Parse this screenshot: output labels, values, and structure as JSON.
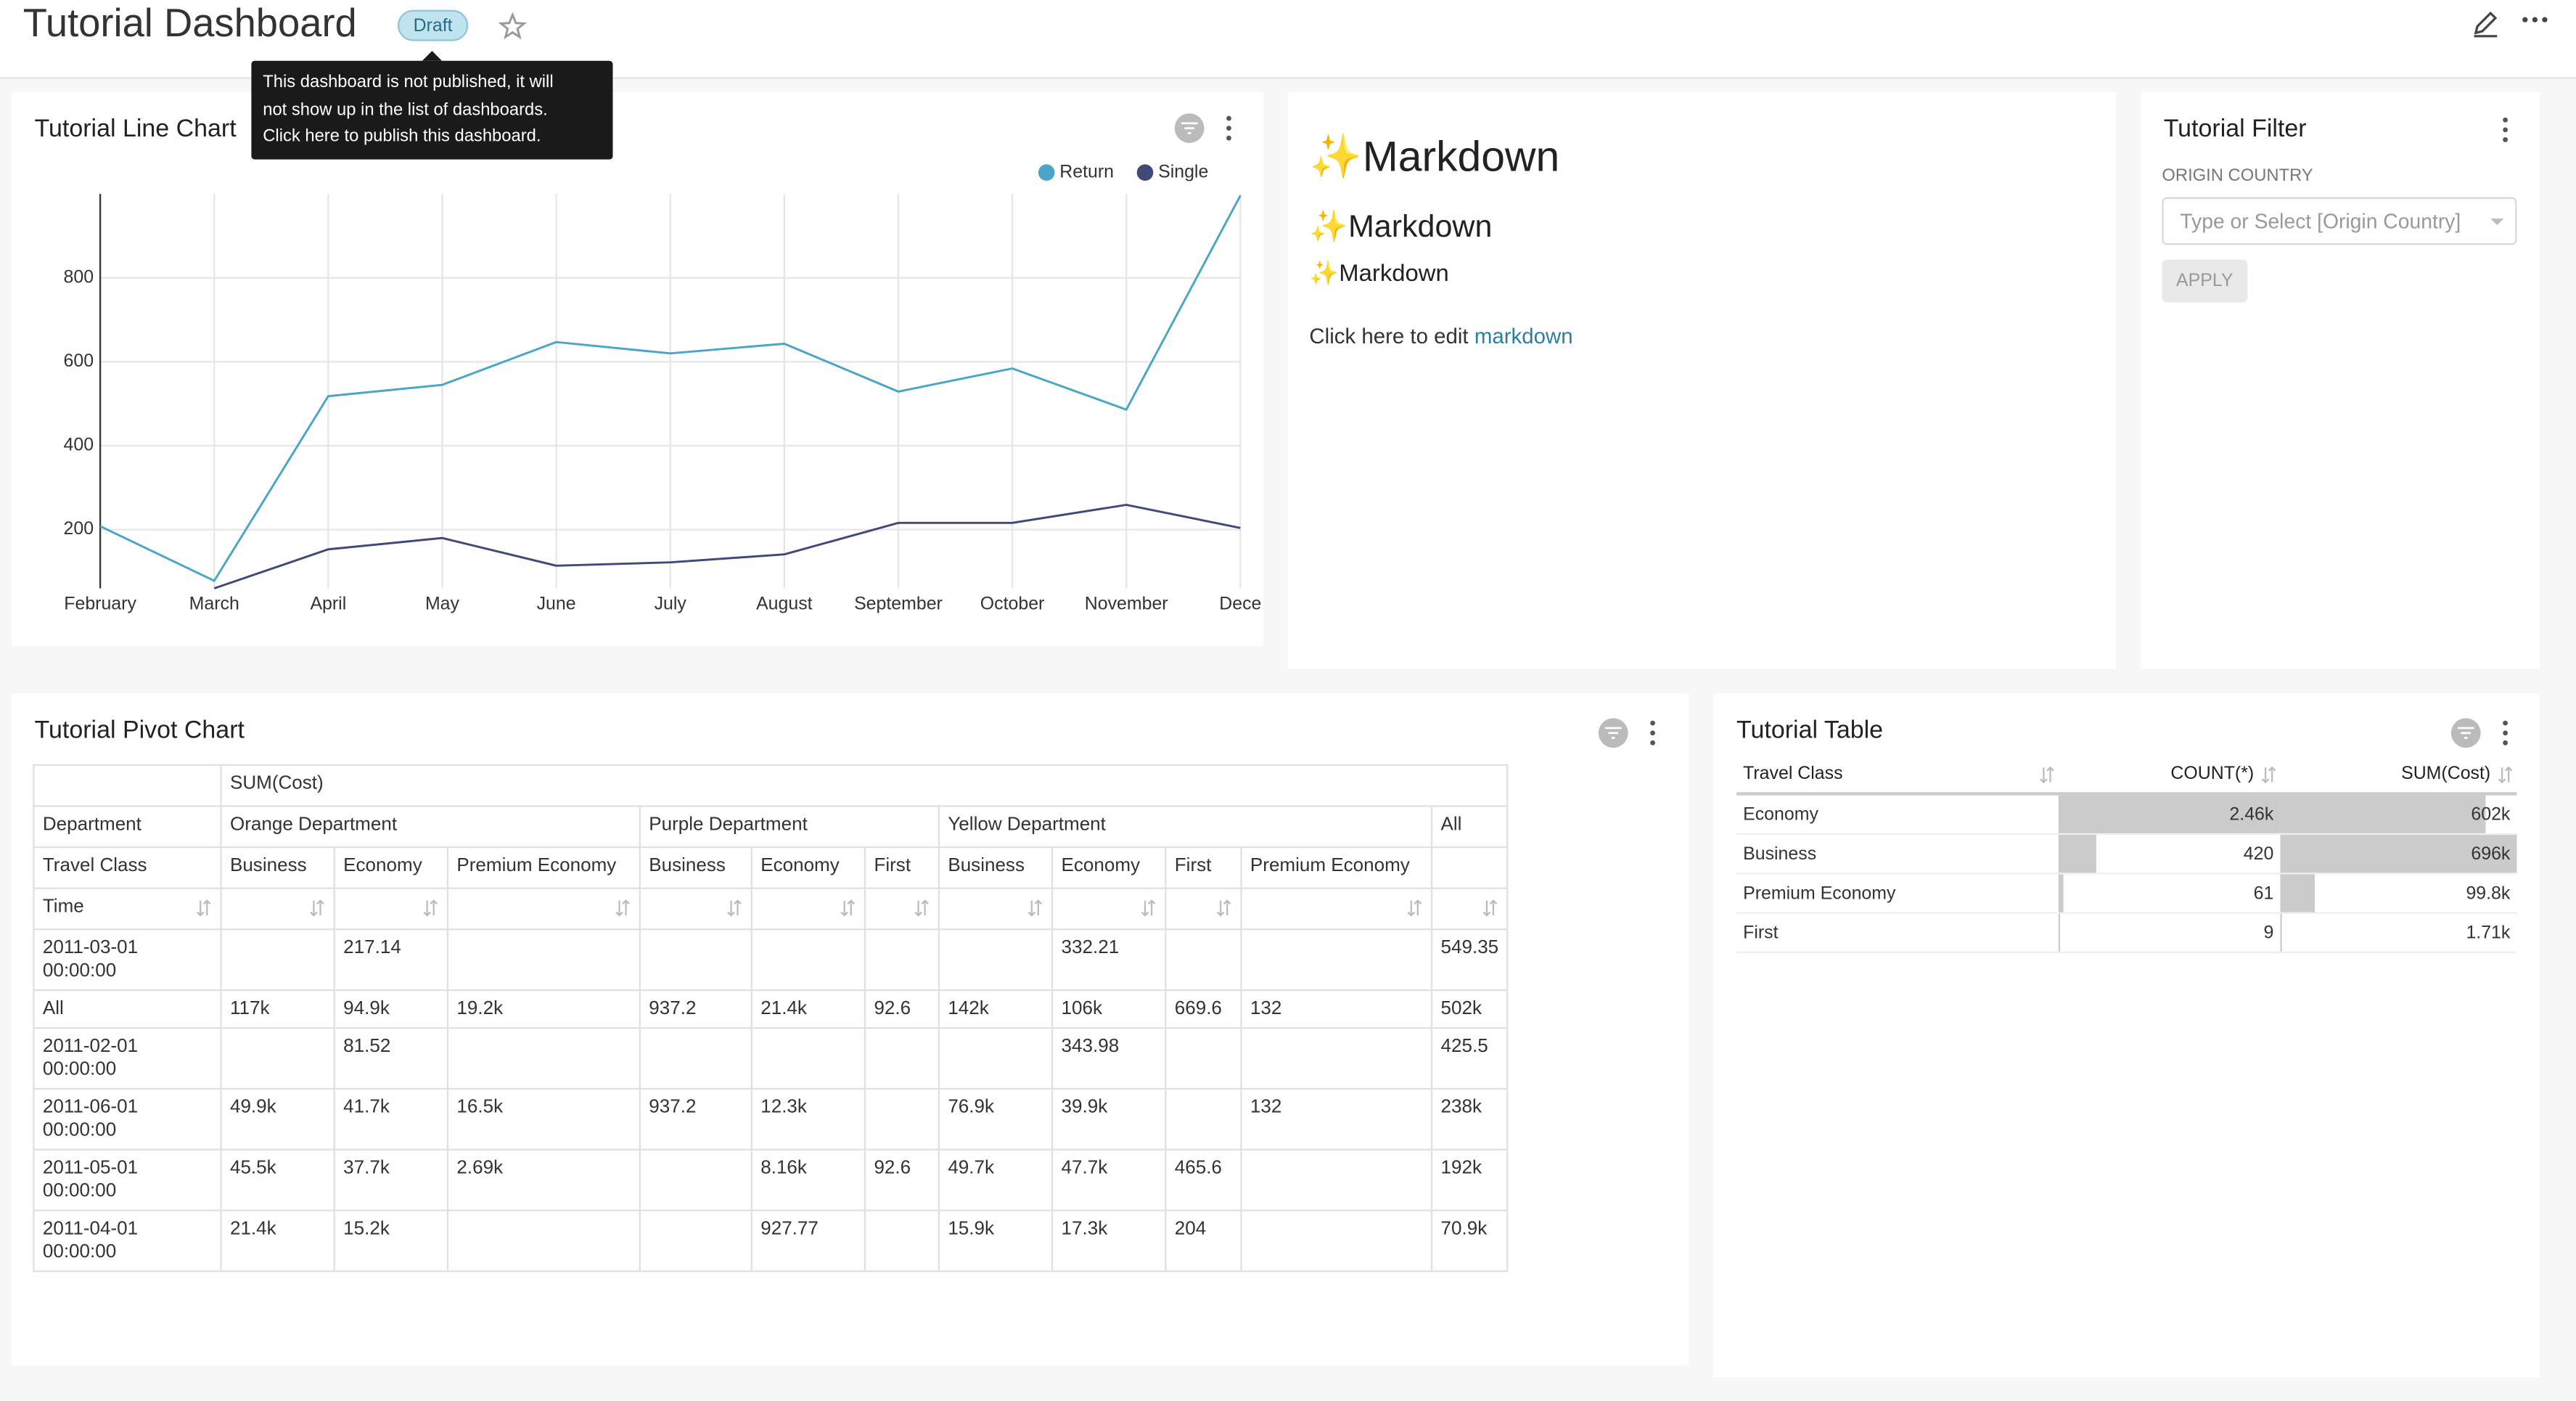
{
  "header": {
    "title": "Tutorial Dashboard",
    "badge": "Draft"
  },
  "tooltip": {
    "lines": [
      "This dashboard is not published, it will",
      "not show up in the list of dashboards.",
      "Click here to publish this dashboard."
    ]
  },
  "chart_data": {
    "type": "line",
    "title": "Tutorial Line Chart",
    "categories": [
      "February",
      "March",
      "April",
      "May",
      "June",
      "July",
      "August",
      "September",
      "October",
      "November",
      "Dece"
    ],
    "series": [
      {
        "name": "Return",
        "color": "#4aa6c9",
        "values": [
          208,
          78,
          518,
          545,
          647,
          620,
          643,
          529,
          584,
          486,
          996
        ]
      },
      {
        "name": "Single",
        "color": "#3f4a7a",
        "values": [
          null,
          60,
          153,
          180,
          114,
          122,
          141,
          216,
          216,
          259,
          204
        ]
      }
    ],
    "ylim": [
      60,
      1000
    ],
    "yticks": [
      200,
      400,
      600,
      800
    ],
    "grid": true,
    "legend": "top-right"
  },
  "markdown": {
    "h1": "✨Markdown",
    "h2": "✨Markdown",
    "h3": "✨Markdown",
    "text": "Click here to edit",
    "link": "markdown"
  },
  "filter": {
    "title": "Tutorial Filter",
    "label": "ORIGIN COUNTRY",
    "placeholder": "Type or Select [Origin Country]",
    "button": "APPLY"
  },
  "pivot": {
    "title": "Tutorial Pivot Chart",
    "metric": "SUM(Cost)",
    "department_header": "Department",
    "class_header": "Travel Class",
    "time_header": "Time",
    "all_label": "All",
    "departments": [
      {
        "name": "Orange Department",
        "classes": [
          "Business",
          "Economy",
          "Premium Economy"
        ]
      },
      {
        "name": "Purple Department",
        "classes": [
          "Business",
          "Economy",
          "First"
        ]
      },
      {
        "name": "Yellow Department",
        "classes": [
          "Business",
          "Economy",
          "First",
          "Premium Economy"
        ]
      }
    ],
    "rows": [
      {
        "time": "2011-03-01 00:00:00",
        "cells": [
          null,
          "217.14",
          null,
          null,
          null,
          null,
          null,
          "332.21",
          null,
          null,
          "549.35"
        ]
      },
      {
        "time": "All",
        "cells": [
          "117k",
          "94.9k",
          "19.2k",
          "937.2",
          "21.4k",
          "92.6",
          "142k",
          "106k",
          "669.6",
          "132",
          "502k"
        ]
      },
      {
        "time": "2011-02-01 00:00:00",
        "cells": [
          null,
          "81.52",
          null,
          null,
          null,
          null,
          null,
          "343.98",
          null,
          null,
          "425.5"
        ]
      },
      {
        "time": "2011-06-01 00:00:00",
        "cells": [
          "49.9k",
          "41.7k",
          "16.5k",
          "937.2",
          "12.3k",
          null,
          "76.9k",
          "39.9k",
          null,
          "132",
          "238k"
        ]
      },
      {
        "time": "2011-05-01 00:00:00",
        "cells": [
          "45.5k",
          "37.7k",
          "2.69k",
          null,
          "8.16k",
          "92.6",
          "49.7k",
          "47.7k",
          "465.6",
          null,
          "192k"
        ]
      },
      {
        "time": "2011-04-01 00:00:00",
        "cells": [
          "21.4k",
          "15.2k",
          null,
          null,
          "927.77",
          null,
          "15.9k",
          "17.3k",
          "204",
          null,
          "70.9k"
        ]
      }
    ]
  },
  "table": {
    "title": "Tutorial Table",
    "columns": [
      "Travel Class",
      "COUNT(*)",
      "SUM(Cost)"
    ],
    "classes": [
      "Economy",
      "Business",
      "Premium Economy",
      "First"
    ],
    "count": {
      "values": [
        2460,
        420,
        61,
        9
      ],
      "value_labels": [
        "2.46k",
        "420",
        "61",
        "9"
      ]
    },
    "sum": {
      "values": [
        602000,
        696000,
        99800,
        1710
      ],
      "value_labels": [
        "602k",
        "696k",
        "99.8k",
        "1.71k"
      ]
    }
  }
}
